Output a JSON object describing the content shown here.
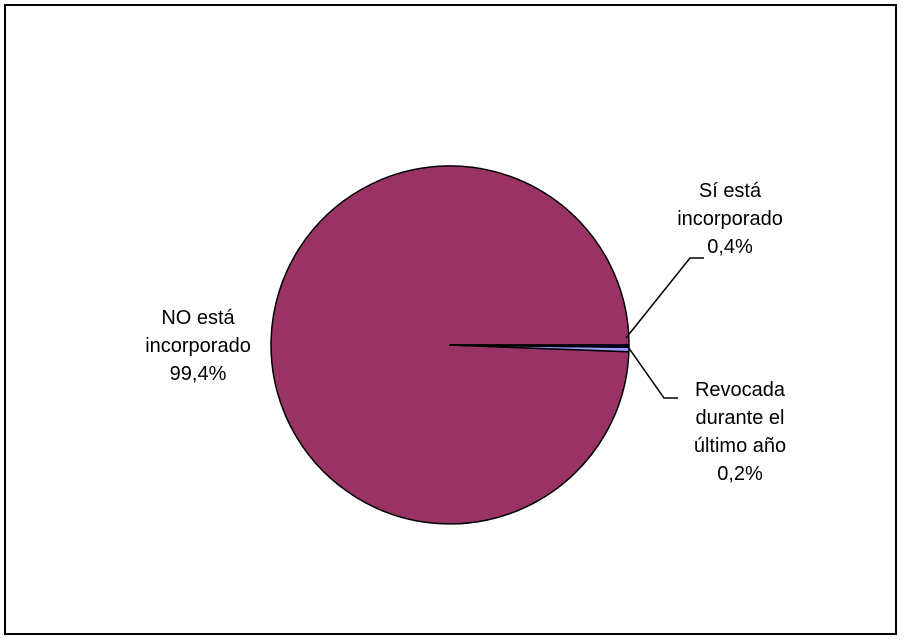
{
  "chart_data": {
    "type": "pie",
    "title": "",
    "slices": [
      {
        "name": "NO está incorporado",
        "value": 99.4,
        "label_lines": [
          "NO está",
          "incorporado",
          "99,4%"
        ],
        "color": "#993366"
      },
      {
        "name": "Sí está incorporado",
        "value": 0.4,
        "label_lines": [
          "Sí está",
          "incorporado",
          "0,4%"
        ],
        "color": "#9999ff"
      },
      {
        "name": "Revocada durante el último año",
        "value": 0.2,
        "label_lines": [
          "Revocada",
          "durante el",
          "último año",
          "0,2%"
        ],
        "color": "#000080"
      }
    ],
    "legend": "none",
    "start_angle_deg": 0,
    "direction": "counterclockwise",
    "outline_color": "#000000"
  }
}
